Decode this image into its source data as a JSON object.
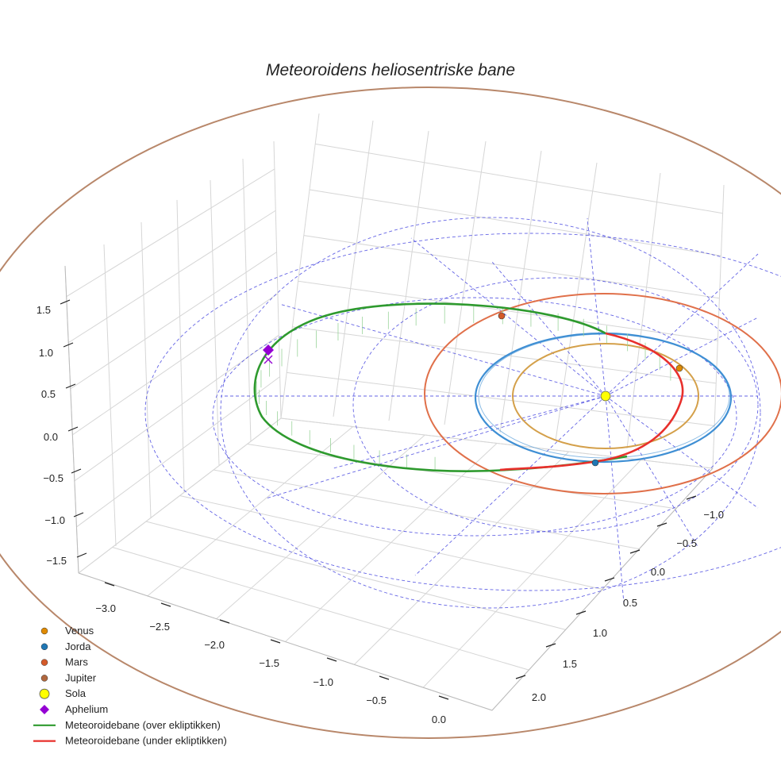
{
  "chart_data": {
    "type": "line3d",
    "title": "Meteoroidens heliosentriske bane",
    "x_ticks": [
      "−3.0",
      "−2.5",
      "−2.0",
      "−1.5",
      "−1.0",
      "−0.5",
      "0.0"
    ],
    "y_ticks": [
      "−1.0",
      "−0.5",
      "0.0",
      "0.5",
      "1.0",
      "1.5",
      "2.0"
    ],
    "z_ticks": [
      "1.5",
      "1.0",
      "0.5",
      "0.0",
      "−0.5",
      "−1.0",
      "−1.5"
    ],
    "xlim": [
      -3.3,
      0.3
    ],
    "ylim": [
      -1.3,
      2.3
    ],
    "zlim": [
      -1.7,
      2.0
    ],
    "planets": [
      {
        "name": "Venus",
        "label": "Venus",
        "color": "#d4a04a",
        "marker_color": "#e08a00",
        "radius_au": 0.72
      },
      {
        "name": "Jorda",
        "label": "Jorda",
        "color": "#3f8fd4",
        "marker_color": "#1f77b4",
        "radius_au": 1.0
      },
      {
        "name": "Mars",
        "label": "Mars",
        "color": "#e0704a",
        "marker_color": "#d45a2a",
        "radius_au": 1.52
      },
      {
        "name": "Jupiter",
        "label": "",
        "color": "#b8876a",
        "marker_color": "#b0673e",
        "radius_au": 5.2
      }
    ],
    "sun": {
      "name": "Sola",
      "color": "#ffff00"
    },
    "aphelion": {
      "name": "Aphelium",
      "color": "#9400d3"
    },
    "orbit_series": [
      {
        "name": "Meteoroidebane (over ekliptikken)",
        "color": "#2e9a2e"
      },
      {
        "name": "Meteoroidebane (under ekliptikken)",
        "color": "#e8302c"
      }
    ],
    "legend": [
      {
        "label": "Venus",
        "kind": "dot",
        "color": "#e08a00"
      },
      {
        "label": "Jorda",
        "kind": "dot",
        "color": "#1f77b4"
      },
      {
        "label": "Mars",
        "kind": "dot",
        "color": "#d45a2a"
      },
      {
        "label": "Jupiter",
        "kind": "dot",
        "color": "#b0673e"
      },
      {
        "label": "Sola",
        "kind": "bigdot",
        "color": "#ffff00"
      },
      {
        "label": "Aphelium",
        "kind": "diamond",
        "color": "#9400d3"
      },
      {
        "label": "Meteoroidebane (over ekliptikken)",
        "kind": "line",
        "color": "#2e9a2e"
      },
      {
        "label": "Meteoroidebane (under ekliptikken)",
        "kind": "line",
        "color": "#e8302c"
      }
    ]
  }
}
